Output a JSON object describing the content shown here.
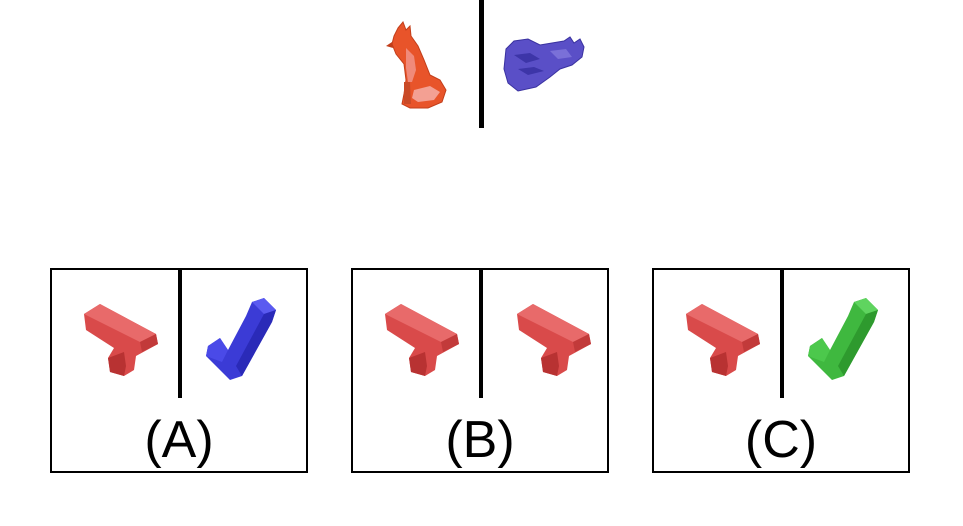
{
  "example": {
    "left_object": {
      "name": "fox",
      "color": "#e8542a"
    },
    "right_object": {
      "name": "fox",
      "color": "#5a4fc7"
    }
  },
  "options": [
    {
      "label": "(A)",
      "left_object": {
        "name": "l-block",
        "color": "#d94a4a"
      },
      "right_object": {
        "name": "l-block",
        "color": "#3b3bd6"
      }
    },
    {
      "label": "(B)",
      "left_object": {
        "name": "l-block",
        "color": "#d94a4a"
      },
      "right_object": {
        "name": "l-block",
        "color": "#d94a4a"
      }
    },
    {
      "label": "(C)",
      "left_object": {
        "name": "l-block",
        "color": "#d94a4a"
      },
      "right_object": {
        "name": "l-block",
        "color": "#3fb83f"
      }
    }
  ]
}
